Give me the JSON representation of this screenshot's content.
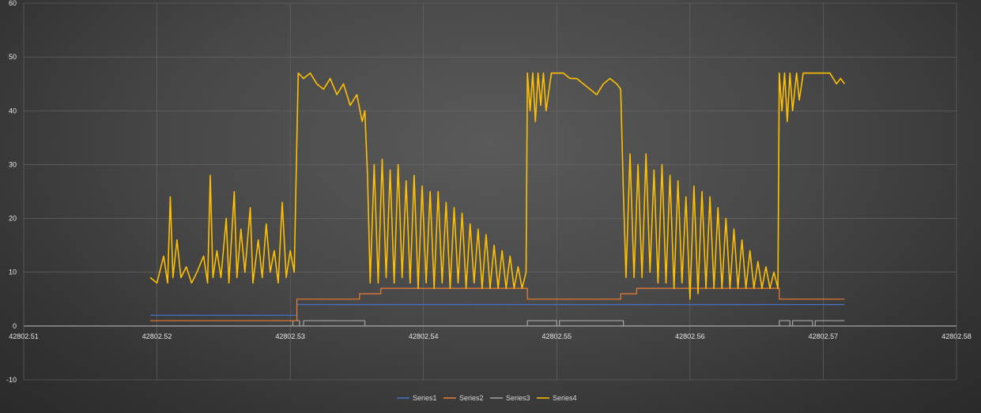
{
  "chart_data": {
    "type": "line",
    "title": "",
    "xlabel": "",
    "ylabel": "",
    "xlim": [
      42802.51,
      42802.58
    ],
    "ylim": [
      -10,
      60
    ],
    "x_ticks": [
      "42802.51",
      "42802.52",
      "42802.53",
      "42802.54",
      "42802.55",
      "42802.56",
      "42802.57",
      "42802.58"
    ],
    "y_ticks": [
      "60",
      "50",
      "40",
      "30",
      "20",
      "10",
      "0",
      "-10"
    ],
    "grid": true,
    "legend_position": "bottom",
    "series": [
      {
        "name": "Series1",
        "color": "#4472c4",
        "points": [
          [
            42802.5195,
            2
          ],
          [
            42802.5305,
            2
          ],
          [
            42802.5305,
            4
          ],
          [
            42802.5716,
            4
          ]
        ]
      },
      {
        "name": "Series2",
        "color": "#ed7d31",
        "points": [
          [
            42802.5195,
            1
          ],
          [
            42802.5305,
            1
          ],
          [
            42802.5305,
            5
          ],
          [
            42802.5352,
            5
          ],
          [
            42802.5352,
            6
          ],
          [
            42802.5368,
            6
          ],
          [
            42802.5368,
            7
          ],
          [
            42802.5478,
            7
          ],
          [
            42802.5478,
            5
          ],
          [
            42802.5548,
            5
          ],
          [
            42802.5548,
            6
          ],
          [
            42802.556,
            6
          ],
          [
            42802.556,
            7
          ],
          [
            42802.5667,
            7
          ],
          [
            42802.5667,
            5
          ],
          [
            42802.5716,
            5
          ]
        ]
      },
      {
        "name": "Series3",
        "color": "#a5a5a5",
        "points": [
          [
            42802.5195,
            0
          ],
          [
            42802.5302,
            0
          ],
          [
            42802.5302,
            1
          ],
          [
            42802.5307,
            1
          ],
          [
            42802.5307,
            0
          ],
          [
            42802.531,
            0
          ],
          [
            42802.531,
            1
          ],
          [
            42802.5356,
            1
          ],
          [
            42802.5356,
            0
          ],
          [
            42802.5478,
            0
          ],
          [
            42802.5478,
            1
          ],
          [
            42802.55,
            1
          ],
          [
            42802.55,
            0
          ],
          [
            42802.5502,
            0
          ],
          [
            42802.5502,
            1
          ],
          [
            42802.555,
            1
          ],
          [
            42802.555,
            0
          ],
          [
            42802.5667,
            0
          ],
          [
            42802.5667,
            1
          ],
          [
            42802.5675,
            1
          ],
          [
            42802.5675,
            0
          ],
          [
            42802.5677,
            0
          ],
          [
            42802.5677,
            1
          ],
          [
            42802.5692,
            1
          ],
          [
            42802.5692,
            0
          ],
          [
            42802.5694,
            0
          ],
          [
            42802.5694,
            1
          ],
          [
            42802.5716,
            1
          ]
        ]
      },
      {
        "name": "Series4",
        "color": "#ffc000",
        "points": [
          [
            42802.5195,
            9
          ],
          [
            42802.52,
            8
          ],
          [
            42802.5205,
            13
          ],
          [
            42802.5208,
            8
          ],
          [
            42802.521,
            24
          ],
          [
            42802.5212,
            9
          ],
          [
            42802.5215,
            16
          ],
          [
            42802.5218,
            9
          ],
          [
            42802.5222,
            11
          ],
          [
            42802.5226,
            8
          ],
          [
            42802.523,
            10
          ],
          [
            42802.5235,
            13
          ],
          [
            42802.5238,
            8
          ],
          [
            42802.524,
            28
          ],
          [
            42802.5242,
            9
          ],
          [
            42802.5245,
            14
          ],
          [
            42802.5248,
            9
          ],
          [
            42802.5252,
            20
          ],
          [
            42802.5254,
            8
          ],
          [
            42802.5258,
            25
          ],
          [
            42802.526,
            9
          ],
          [
            42802.5263,
            18
          ],
          [
            42802.5266,
            10
          ],
          [
            42802.527,
            22
          ],
          [
            42802.5272,
            8
          ],
          [
            42802.5276,
            16
          ],
          [
            42802.5279,
            9
          ],
          [
            42802.5282,
            19
          ],
          [
            42802.5285,
            10
          ],
          [
            42802.5288,
            14
          ],
          [
            42802.5291,
            8
          ],
          [
            42802.5294,
            23
          ],
          [
            42802.5297,
            9
          ],
          [
            42802.53,
            14
          ],
          [
            42802.5303,
            10
          ],
          [
            42802.5306,
            47
          ],
          [
            42802.531,
            46
          ],
          [
            42802.5315,
            47
          ],
          [
            42802.532,
            45
          ],
          [
            42802.5325,
            44
          ],
          [
            42802.533,
            46
          ],
          [
            42802.5335,
            43
          ],
          [
            42802.534,
            45
          ],
          [
            42802.5345,
            41
          ],
          [
            42802.535,
            43
          ],
          [
            42802.5354,
            38
          ],
          [
            42802.5356,
            40
          ],
          [
            42802.5358,
            28
          ],
          [
            42802.536,
            8
          ],
          [
            42802.5363,
            30
          ],
          [
            42802.5366,
            8
          ],
          [
            42802.5369,
            31
          ],
          [
            42802.5372,
            9
          ],
          [
            42802.5375,
            29
          ],
          [
            42802.5378,
            8
          ],
          [
            42802.5381,
            30
          ],
          [
            42802.5384,
            9
          ],
          [
            42802.5387,
            27
          ],
          [
            42802.539,
            8
          ],
          [
            42802.5393,
            28
          ],
          [
            42802.5396,
            7
          ],
          [
            42802.5399,
            26
          ],
          [
            42802.5402,
            8
          ],
          [
            42802.5405,
            25
          ],
          [
            42802.5408,
            7
          ],
          [
            42802.5411,
            25
          ],
          [
            42802.5414,
            8
          ],
          [
            42802.5417,
            23
          ],
          [
            42802.542,
            7
          ],
          [
            42802.5423,
            22
          ],
          [
            42802.5426,
            8
          ],
          [
            42802.5429,
            21
          ],
          [
            42802.5432,
            7
          ],
          [
            42802.5435,
            19
          ],
          [
            42802.5438,
            8
          ],
          [
            42802.5441,
            18
          ],
          [
            42802.5444,
            7
          ],
          [
            42802.5447,
            17
          ],
          [
            42802.545,
            7
          ],
          [
            42802.5453,
            15
          ],
          [
            42802.5456,
            7
          ],
          [
            42802.5459,
            14
          ],
          [
            42802.5462,
            7
          ],
          [
            42802.5465,
            13
          ],
          [
            42802.5468,
            7
          ],
          [
            42802.5471,
            11
          ],
          [
            42802.5474,
            7
          ],
          [
            42802.5477,
            10
          ],
          [
            42802.5478,
            47
          ],
          [
            42802.548,
            40
          ],
          [
            42802.5482,
            47
          ],
          [
            42802.5484,
            38
          ],
          [
            42802.5486,
            47
          ],
          [
            42802.5488,
            41
          ],
          [
            42802.549,
            47
          ],
          [
            42802.5492,
            40
          ],
          [
            42802.5496,
            47
          ],
          [
            42802.5505,
            47
          ],
          [
            42802.551,
            46
          ],
          [
            42802.5515,
            46
          ],
          [
            42802.552,
            45
          ],
          [
            42802.5525,
            44
          ],
          [
            42802.553,
            43
          ],
          [
            42802.5535,
            45
          ],
          [
            42802.554,
            46
          ],
          [
            42802.5545,
            45
          ],
          [
            42802.5548,
            44
          ],
          [
            42802.555,
            25
          ],
          [
            42802.5552,
            9
          ],
          [
            42802.5555,
            32
          ],
          [
            42802.5558,
            9
          ],
          [
            42802.5561,
            30
          ],
          [
            42802.5564,
            9
          ],
          [
            42802.5567,
            32
          ],
          [
            42802.557,
            10
          ],
          [
            42802.5573,
            29
          ],
          [
            42802.5576,
            8
          ],
          [
            42802.5579,
            30
          ],
          [
            42802.5582,
            8
          ],
          [
            42802.5585,
            28
          ],
          [
            42802.5588,
            7
          ],
          [
            42802.5591,
            27
          ],
          [
            42802.5594,
            8
          ],
          [
            42802.5597,
            24
          ],
          [
            42802.56,
            5
          ],
          [
            42802.5603,
            26
          ],
          [
            42802.5606,
            6
          ],
          [
            42802.5609,
            25
          ],
          [
            42802.5612,
            7
          ],
          [
            42802.5615,
            24
          ],
          [
            42802.5618,
            7
          ],
          [
            42802.5621,
            22
          ],
          [
            42802.5624,
            7
          ],
          [
            42802.5627,
            20
          ],
          [
            42802.563,
            7
          ],
          [
            42802.5633,
            18
          ],
          [
            42802.5636,
            7
          ],
          [
            42802.5639,
            16
          ],
          [
            42802.5642,
            7
          ],
          [
            42802.5645,
            14
          ],
          [
            42802.5648,
            7
          ],
          [
            42802.5651,
            12
          ],
          [
            42802.5654,
            7
          ],
          [
            42802.5657,
            11
          ],
          [
            42802.566,
            7
          ],
          [
            42802.5663,
            10
          ],
          [
            42802.5666,
            7
          ],
          [
            42802.5667,
            47
          ],
          [
            42802.5669,
            40
          ],
          [
            42802.5671,
            47
          ],
          [
            42802.5673,
            38
          ],
          [
            42802.5675,
            47
          ],
          [
            42802.5677,
            40
          ],
          [
            42802.568,
            47
          ],
          [
            42802.5682,
            42
          ],
          [
            42802.5685,
            47
          ],
          [
            42802.5695,
            47
          ],
          [
            42802.5705,
            47
          ],
          [
            42802.571,
            45
          ],
          [
            42802.5713,
            46
          ],
          [
            42802.5716,
            45
          ]
        ]
      }
    ]
  }
}
